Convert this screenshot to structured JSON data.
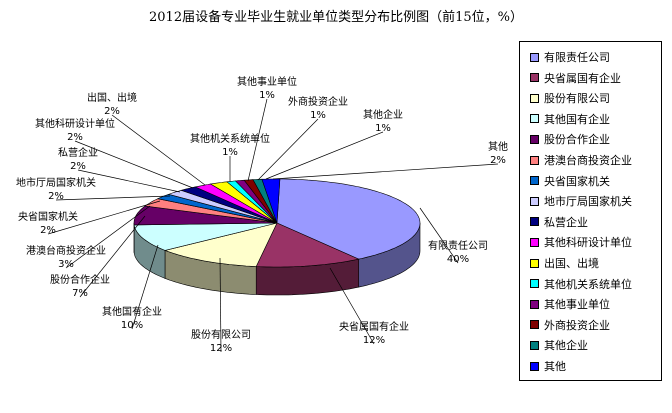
{
  "chart_data": {
    "type": "pie",
    "title": "2012届设备专业毕业生就业单位类型分布比例图（前15位，%）",
    "slices": [
      {
        "name": "有限责任公司",
        "value": 40,
        "label": "40%",
        "color": "#9999ff"
      },
      {
        "name": "央省属国有企业",
        "value": 12,
        "label": "12%",
        "color": "#993366"
      },
      {
        "name": "股份有限公司",
        "value": 12,
        "label": "12%",
        "color": "#ffffcc"
      },
      {
        "name": "其他国有企业",
        "value": 10,
        "label": "10%",
        "color": "#ccffff"
      },
      {
        "name": "股份合作企业",
        "value": 7,
        "label": "7%",
        "color": "#660066"
      },
      {
        "name": "港澳台商投资企业",
        "value": 3,
        "label": "3%",
        "color": "#ff8080"
      },
      {
        "name": "央省国家机关",
        "value": 2,
        "label": "2%",
        "color": "#0066cc"
      },
      {
        "name": "地市厅局国家机关",
        "value": 2,
        "label": "2%",
        "color": "#ccccff"
      },
      {
        "name": "私营企业",
        "value": 2,
        "label": "2%",
        "color": "#000080"
      },
      {
        "name": "其他科研设计单位",
        "value": 2,
        "label": "2%",
        "color": "#ff00ff"
      },
      {
        "name": "出国、出境",
        "value": 2,
        "label": "2%",
        "color": "#ffff00"
      },
      {
        "name": "其他机关系统单位",
        "value": 1,
        "label": "1%",
        "color": "#00ffff"
      },
      {
        "name": "其他事业单位",
        "value": 1,
        "label": "1%",
        "color": "#800080"
      },
      {
        "name": "外商投资企业",
        "value": 1,
        "label": "1%",
        "color": "#800000"
      },
      {
        "name": "其他企业",
        "value": 1,
        "label": "1%",
        "color": "#008080"
      },
      {
        "name": "其他",
        "value": 2,
        "label": "2%",
        "color": "#0000ff"
      }
    ],
    "legend_position": "right"
  }
}
